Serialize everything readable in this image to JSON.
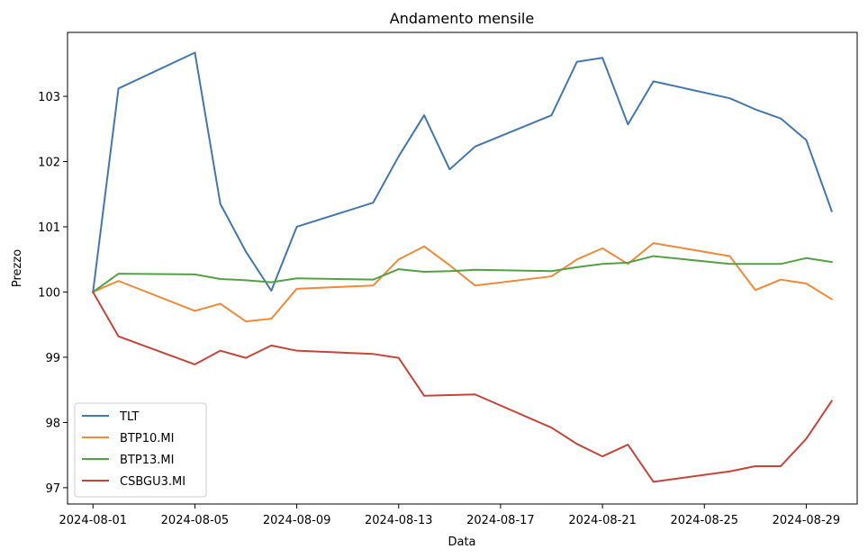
{
  "chart_data": {
    "type": "line",
    "title": "Andamento mensile",
    "xlabel": "Data",
    "ylabel": "Prezzo",
    "ylim": [
      96.75,
      103.98
    ],
    "yticks": [
      97,
      98,
      99,
      100,
      101,
      102,
      103
    ],
    "xlim": [
      "2024-07-31",
      "2024-08-31"
    ],
    "xticks": [
      "2024-08-01",
      "2024-08-05",
      "2024-08-09",
      "2024-08-13",
      "2024-08-17",
      "2024-08-21",
      "2024-08-25",
      "2024-08-29"
    ],
    "legend_position": "lower-left",
    "grid": false,
    "x": [
      "2024-08-01",
      "2024-08-02",
      "2024-08-05",
      "2024-08-06",
      "2024-08-07",
      "2024-08-08",
      "2024-08-09",
      "2024-08-12",
      "2024-08-13",
      "2024-08-14",
      "2024-08-15",
      "2024-08-16",
      "2024-08-19",
      "2024-08-20",
      "2024-08-21",
      "2024-08-22",
      "2024-08-23",
      "2024-08-26",
      "2024-08-27",
      "2024-08-28",
      "2024-08-29",
      "2024-08-30"
    ],
    "series": [
      {
        "name": "TLT",
        "color": "#4477aa",
        "values": [
          100.0,
          103.12,
          103.67,
          101.35,
          100.62,
          100.02,
          101.0,
          101.37,
          102.08,
          102.71,
          101.88,
          102.23,
          102.71,
          103.53,
          103.59,
          102.57,
          103.23,
          102.97,
          102.8,
          102.66,
          102.33,
          101.24
        ]
      },
      {
        "name": "BTP10.MI",
        "color": "#ee8a3a",
        "values": [
          100.0,
          100.17,
          99.71,
          99.82,
          99.55,
          99.59,
          100.05,
          100.1,
          100.5,
          100.7,
          100.41,
          100.1,
          100.24,
          100.5,
          100.67,
          100.43,
          100.75,
          100.55,
          100.03,
          100.19,
          100.13,
          99.89
        ]
      },
      {
        "name": "BTP13.MI",
        "color": "#55a046",
        "values": [
          100.0,
          100.28,
          100.27,
          100.2,
          100.18,
          100.15,
          100.21,
          100.19,
          100.35,
          100.31,
          100.32,
          100.34,
          100.32,
          100.38,
          100.43,
          100.45,
          100.55,
          100.43,
          100.43,
          100.43,
          100.52,
          100.46
        ]
      },
      {
        "name": "CSBGU3.MI",
        "color": "#c4463a",
        "values": [
          100.0,
          99.32,
          98.89,
          99.1,
          98.99,
          99.18,
          99.1,
          99.05,
          98.99,
          98.41,
          98.42,
          98.43,
          97.92,
          97.67,
          97.48,
          97.66,
          97.09,
          97.25,
          97.33,
          97.33,
          97.75,
          98.33
        ]
      }
    ]
  }
}
